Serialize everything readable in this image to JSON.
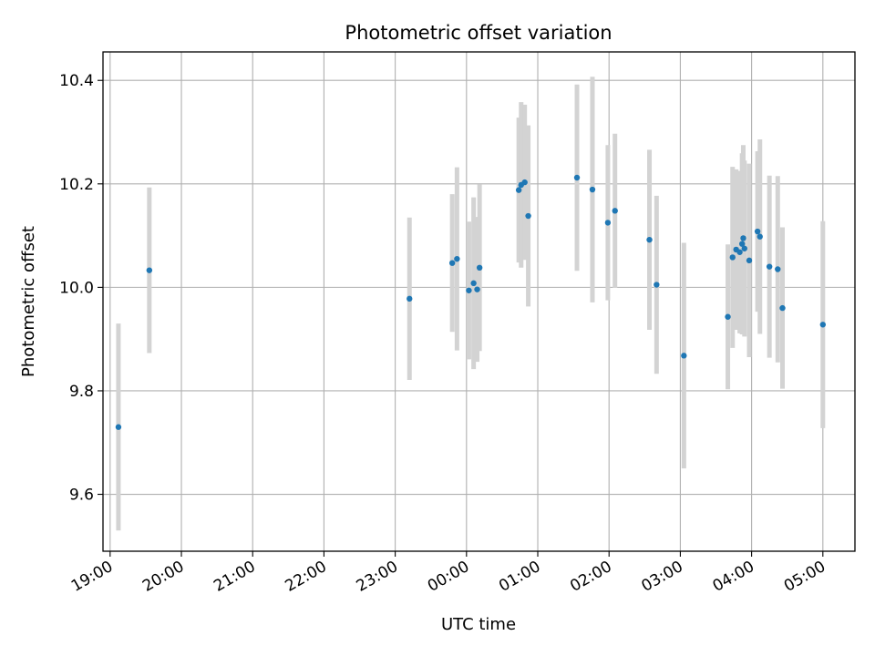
{
  "chart_data": {
    "type": "scatter",
    "title": "Photometric offset variation",
    "xlabel": "UTC time",
    "ylabel": "Photometric offset",
    "xlim": [
      "18:54",
      "05:27"
    ],
    "ylim": [
      9.49,
      10.455
    ],
    "x_ticks": [
      "19:00",
      "20:00",
      "21:00",
      "22:00",
      "23:00",
      "00:00",
      "01:00",
      "02:00",
      "03:00",
      "04:00",
      "05:00"
    ],
    "y_ticks": [
      "9.6",
      "9.8",
      "10.0",
      "10.2",
      "10.4"
    ],
    "grid": true,
    "errorbar_color": "#d3d3d3",
    "marker_color": "#1f77b4",
    "points": [
      {
        "x": "19:07",
        "y": 9.73,
        "err": 0.2
      },
      {
        "x": "19:33",
        "y": 10.033,
        "err": 0.16
      },
      {
        "x": "23:12",
        "y": 9.978,
        "err": 0.157
      },
      {
        "x": "23:48",
        "y": 10.047,
        "err": 0.133
      },
      {
        "x": "23:52",
        "y": 10.055,
        "err": 0.177
      },
      {
        "x": "00:02",
        "y": 9.994,
        "err": 0.133
      },
      {
        "x": "00:06",
        "y": 10.008,
        "err": 0.166
      },
      {
        "x": "00:09",
        "y": 9.996,
        "err": 0.14
      },
      {
        "x": "00:11",
        "y": 10.038,
        "err": 0.161
      },
      {
        "x": "00:44",
        "y": 10.188,
        "err": 0.14
      },
      {
        "x": "00:46",
        "y": 10.198,
        "err": 0.16
      },
      {
        "x": "00:49",
        "y": 10.203,
        "err": 0.15
      },
      {
        "x": "00:52",
        "y": 10.138,
        "err": 0.175
      },
      {
        "x": "01:33",
        "y": 10.212,
        "err": 0.18
      },
      {
        "x": "01:46",
        "y": 10.189,
        "err": 0.218
      },
      {
        "x": "01:59",
        "y": 10.125,
        "err": 0.15
      },
      {
        "x": "02:05",
        "y": 10.148,
        "err": 0.149
      },
      {
        "x": "02:34",
        "y": 10.092,
        "err": 0.174
      },
      {
        "x": "02:40",
        "y": 10.005,
        "err": 0.172
      },
      {
        "x": "03:03",
        "y": 9.868,
        "err": 0.218
      },
      {
        "x": "03:40",
        "y": 9.943,
        "err": 0.14
      },
      {
        "x": "03:44",
        "y": 10.058,
        "err": 0.175
      },
      {
        "x": "03:47",
        "y": 10.073,
        "err": 0.155
      },
      {
        "x": "03:50",
        "y": 10.068,
        "err": 0.157
      },
      {
        "x": "03:52",
        "y": 10.084,
        "err": 0.175
      },
      {
        "x": "03:53",
        "y": 10.095,
        "err": 0.18
      },
      {
        "x": "03:54",
        "y": 10.075,
        "err": 0.17
      },
      {
        "x": "03:58",
        "y": 10.052,
        "err": 0.187
      },
      {
        "x": "04:05",
        "y": 10.108,
        "err": 0.155
      },
      {
        "x": "04:07",
        "y": 10.098,
        "err": 0.188
      },
      {
        "x": "04:15",
        "y": 10.04,
        "err": 0.176
      },
      {
        "x": "04:22",
        "y": 10.035,
        "err": 0.18
      },
      {
        "x": "04:26",
        "y": 9.96,
        "err": 0.156
      },
      {
        "x": "05:00",
        "y": 9.928,
        "err": 0.2
      }
    ]
  }
}
